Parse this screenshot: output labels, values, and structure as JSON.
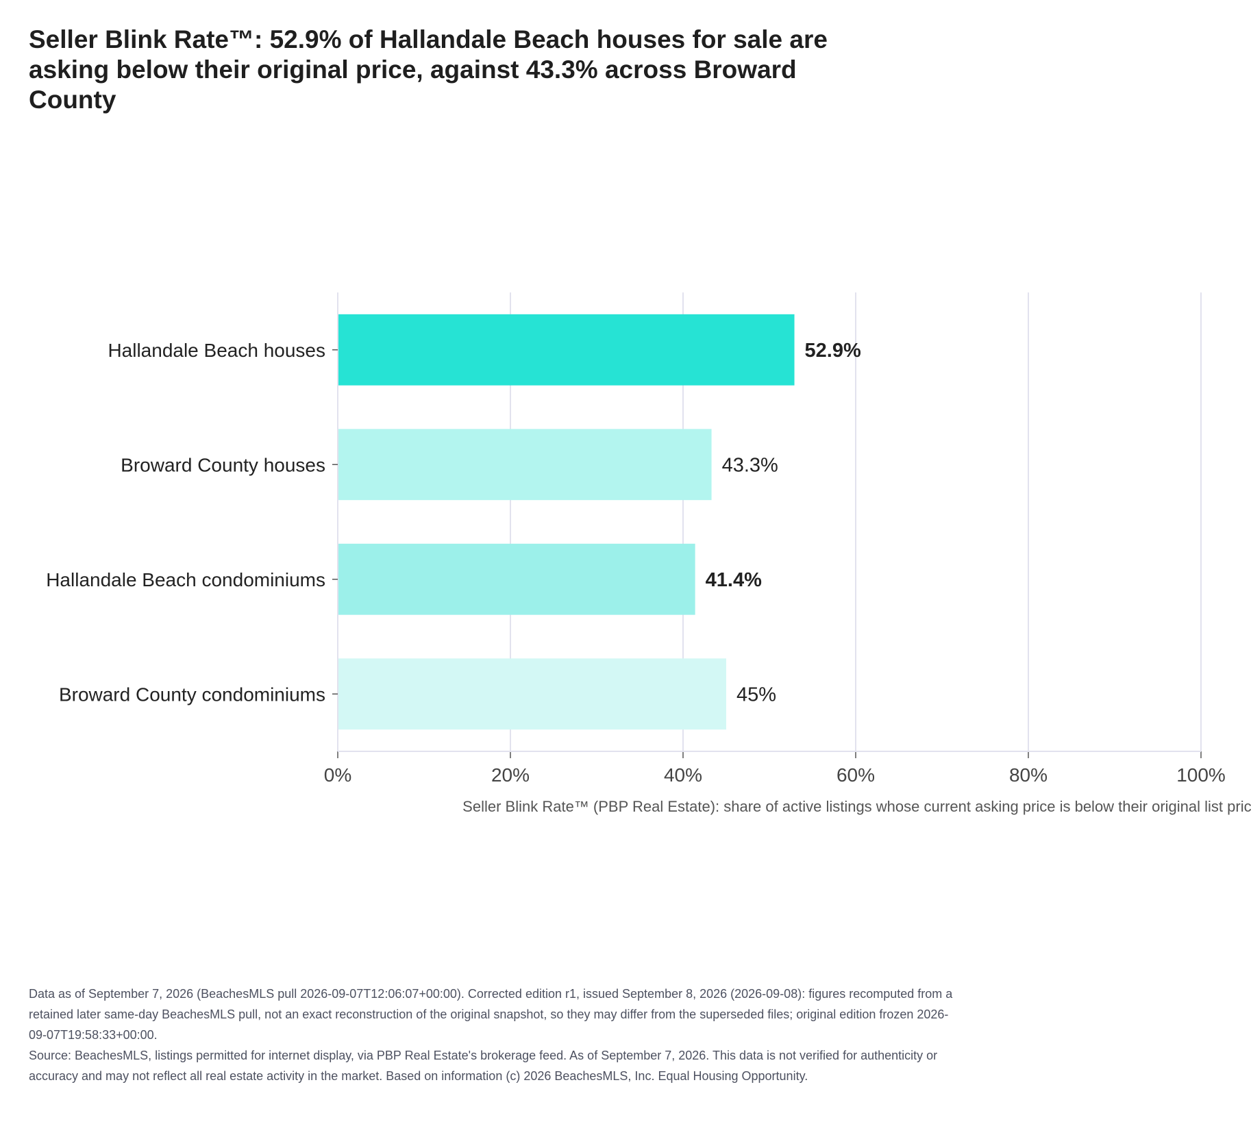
{
  "title": "Seller Blink Rate™: 52.9% of Hallandale Beach houses for sale are asking below their original price, against 43.3% across Broward County",
  "chart_data": {
    "type": "bar",
    "orientation": "horizontal",
    "categories": [
      "Hallandale Beach houses",
      "Broward County houses",
      "Hallandale Beach condominiums",
      "Broward County condominiums"
    ],
    "values": [
      52.9,
      43.3,
      41.4,
      45
    ],
    "value_labels": [
      "52.9%",
      "43.3%",
      "41.4%",
      "45%"
    ],
    "label_bold": [
      true,
      false,
      true,
      false
    ],
    "bar_colors": [
      "#26e3d4",
      "#b3f5ef",
      "#9cf0ea",
      "#d3f8f5"
    ],
    "xlabel": "Seller Blink Rate™ (PBP Real Estate): share of active listings whose current asking price is below their original list price",
    "ylabel": "",
    "xlim": [
      0,
      100
    ],
    "xticks": [
      0,
      20,
      40,
      60,
      80,
      100
    ],
    "xtick_labels": [
      "0%",
      "20%",
      "40%",
      "60%",
      "80%",
      "100%"
    ],
    "grid": true
  },
  "footnote": {
    "line1": "Data as of September 7, 2026 (BeachesMLS pull 2026-09-07T12:06:07+00:00). Corrected edition r1, issued September 8, 2026 (2026-09-08): figures recomputed from a retained later same-day BeachesMLS pull, not an exact reconstruction of the original snapshot, so they may differ from the superseded files; original edition frozen 2026-09-07T19:58:33+00:00.",
    "line2": "Source: BeachesMLS, listings permitted for internet display, via PBP Real Estate's brokerage feed. As of September 7, 2026. This data is not verified for authenticity or accuracy and may not reflect all real estate activity in the market. Based on information (c) 2026 BeachesMLS, Inc. Equal Housing Opportunity."
  }
}
